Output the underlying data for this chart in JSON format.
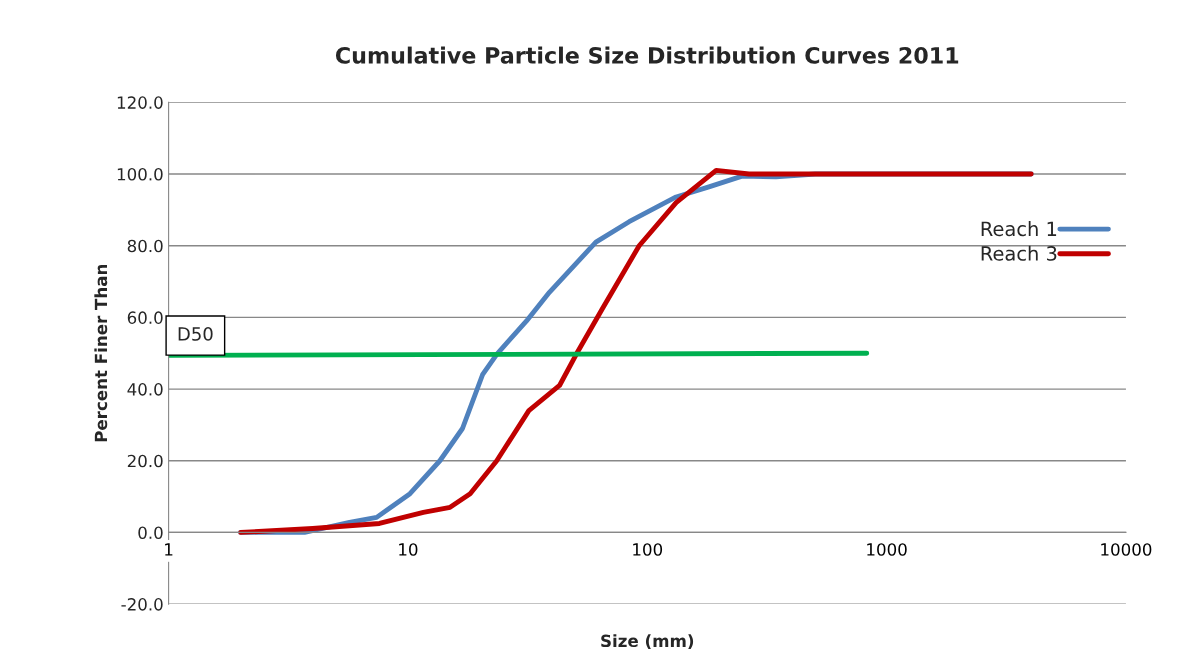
{
  "chart_data": {
    "type": "line",
    "title": "Cumulative Particle Size Distribution Curves 2011",
    "xlabel": "Size (mm)",
    "ylabel": "Percent Finer Than",
    "log": "x",
    "xlim": [
      1,
      10000
    ],
    "xticks": [
      1,
      10,
      100,
      1000,
      10000
    ],
    "ylim": [
      -20,
      120
    ],
    "yticks": [
      {
        "value": -20,
        "label": "-20.0"
      },
      {
        "value": 0,
        "label": "0.0"
      },
      {
        "value": 20,
        "label": "20.0"
      },
      {
        "value": 40,
        "label": "40.0"
      },
      {
        "value": 60,
        "label": "60.0"
      },
      {
        "value": 80,
        "label": "80.0"
      },
      {
        "value": 100,
        "label": "100.0"
      },
      {
        "value": 120,
        "label": "120.0"
      }
    ],
    "grid": "y",
    "legend": "right",
    "marker": "none",
    "line_style": "solid",
    "series": [
      {
        "name": "Reach 1",
        "color": "#4f81bd",
        "x": [
          2.0,
          2.5,
          3.7,
          5.7,
          7.4,
          10.2,
          13.6,
          16.9,
          20.5,
          23.5,
          31.3,
          39,
          61,
          84,
          132,
          181,
          249,
          345,
          504,
          4020
        ],
        "values": [
          0,
          0,
          0,
          2.8,
          4.2,
          10.8,
          20,
          29,
          44,
          49.7,
          59,
          67,
          81,
          86.7,
          93.6,
          96.4,
          99.4,
          99.2,
          100,
          100
        ]
      },
      {
        "name": "Reach 3",
        "color": "#c00000",
        "x": [
          2.0,
          4.0,
          7.6,
          11.6,
          15,
          18.2,
          23.5,
          32,
          43,
          50.5,
          65,
          92.5,
          132,
          194,
          266,
          500,
          4020
        ],
        "values": [
          0,
          1.1,
          2.5,
          5.6,
          7,
          10.8,
          20,
          34,
          41,
          49.7,
          62.5,
          80,
          92,
          101,
          100,
          100,
          100
        ]
      },
      {
        "color": "#00b050",
        "x": [
          1,
          826
        ],
        "values": [
          49.4,
          50.0
        ]
      }
    ],
    "annotations": [
      {
        "text": "D50",
        "x": 1,
        "y": 49.4
      }
    ]
  }
}
